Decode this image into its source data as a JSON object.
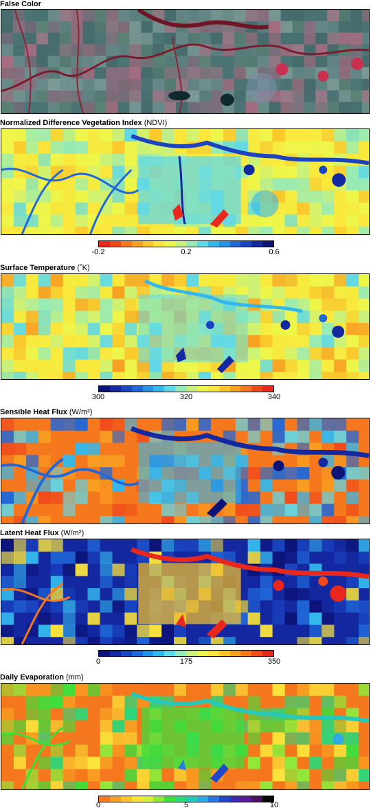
{
  "panels": {
    "false_color": {
      "title": "False Color",
      "unit": ""
    },
    "ndvi": {
      "title": "Normalized Difference Vegetation Index",
      "unit": "(NDVI)"
    },
    "surface_temperature": {
      "title": "Surface Temperature",
      "unit": "(˚K)"
    },
    "sensible_heat_flux": {
      "title": "Sensible Heat Flux",
      "unit": "(W/m²)"
    },
    "latent_heat_flux": {
      "title": "Latent Heat Flux",
      "unit": "(W/m²)"
    },
    "daily_evaporation": {
      "title": "Daily Evaporation",
      "unit": "(mm)"
    }
  },
  "colorbars": {
    "ndvi": {
      "ticks": [
        "-0.2",
        "0.2",
        "0.6"
      ],
      "colors": [
        "#e8281c",
        "#f04a1c",
        "#f5781e",
        "#f8a022",
        "#fbc52a",
        "#fbe53a",
        "#eef54a",
        "#c8f07a",
        "#96eab8",
        "#5fd8e8",
        "#34b8ec",
        "#2592e6",
        "#2068d8",
        "#1a44c0",
        "#1428a0",
        "#0c1478"
      ]
    },
    "surface_temperature": {
      "ticks": [
        "300",
        "320",
        "340"
      ],
      "colors": [
        "#0c1478",
        "#1428a0",
        "#1a44c0",
        "#2068d8",
        "#2592e6",
        "#34b8ec",
        "#5fd8e8",
        "#96eab8",
        "#c8f07a",
        "#eef54a",
        "#fbe53a",
        "#fbc52a",
        "#f8a022",
        "#f5781e",
        "#f04a1c",
        "#e8281c"
      ]
    },
    "heat_flux": {
      "ticks": [
        "0",
        "175",
        "350"
      ],
      "colors": [
        "#0c1478",
        "#1428a0",
        "#1a44c0",
        "#2068d8",
        "#2592e6",
        "#34b8ec",
        "#5fd8e8",
        "#96eab8",
        "#c8f07a",
        "#eef54a",
        "#fbe53a",
        "#fbc52a",
        "#f8a022",
        "#f5781e",
        "#f04a1c",
        "#e8281c"
      ]
    },
    "evaporation": {
      "ticks": [
        "0",
        "5",
        "10"
      ],
      "colors": [
        "#f5781e",
        "#f8a022",
        "#fbc52a",
        "#fbe53a",
        "#d8f03c",
        "#90e83a",
        "#3ede3c",
        "#2ad87a",
        "#28c8b8",
        "#30a8e8",
        "#2878e0",
        "#2048c8",
        "#3a2cb0",
        "#5a1c98",
        "#4a1060",
        "#0a0a0a"
      ]
    }
  }
}
